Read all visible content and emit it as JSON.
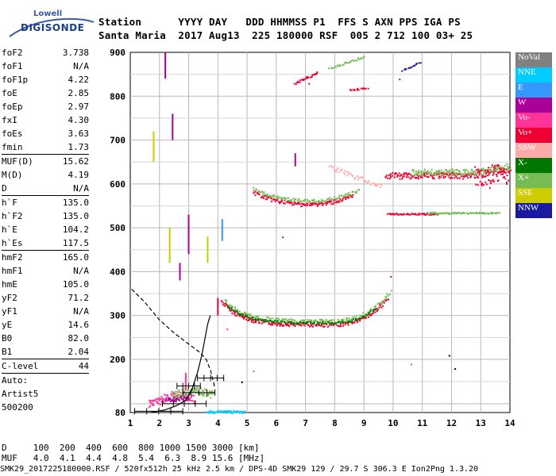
{
  "logo": {
    "line1": "Lowell",
    "line2": "DIGISONDE"
  },
  "header": {
    "row1": "Station      YYYY DAY   DDD HHMMSS P1  FFS S AXN PPS IGA PS",
    "row2": "Santa Maria  2017 Aug13  225 180000 RSF  005 2 712 100 03+ 25"
  },
  "params": [
    {
      "name": "foF2",
      "value": "3.738"
    },
    {
      "name": "foF1",
      "value": "N/A"
    },
    {
      "name": "foF1p",
      "value": "4.22"
    },
    {
      "name": "foE",
      "value": "2.85"
    },
    {
      "name": "foEp",
      "value": "2.97"
    },
    {
      "name": "fxI",
      "value": "4.30"
    },
    {
      "name": "foEs",
      "value": "3.63"
    },
    {
      "name": "fmin",
      "value": "1.73"
    },
    {
      "sep": true
    },
    {
      "name": "MUF(D)",
      "value": "15.62"
    },
    {
      "name": "M(D)",
      "value": "4.19"
    },
    {
      "name": "D",
      "value": "N/A"
    },
    {
      "sep": true
    },
    {
      "name": "h`F",
      "value": "135.0"
    },
    {
      "name": "h`F2",
      "value": "135.0"
    },
    {
      "name": "h`E",
      "value": "104.2"
    },
    {
      "name": "h`Es",
      "value": "117.5"
    },
    {
      "sep": true
    },
    {
      "name": "hmF2",
      "value": "165.0"
    },
    {
      "name": "hmF1",
      "value": "N/A"
    },
    {
      "name": "hmE",
      "value": "105.0"
    },
    {
      "name": "yF2",
      "value": "71.2"
    },
    {
      "name": "yF1",
      "value": "N/A"
    },
    {
      "name": "yE",
      "value": "14.6"
    },
    {
      "name": "B0",
      "value": "82.0"
    },
    {
      "name": "B1",
      "value": "2.04"
    },
    {
      "sep": true
    },
    {
      "name": "C-level",
      "value": "44"
    },
    {
      "sep": true
    },
    {
      "name": "Auto:",
      "value": ""
    },
    {
      "name": "Artist5",
      "value": ""
    },
    {
      "name": "500200",
      "value": ""
    }
  ],
  "legend": [
    {
      "label": "NoVal",
      "color": "#808080"
    },
    {
      "label": "NNE",
      "color": "#00ccff"
    },
    {
      "label": "E",
      "color": "#3399ff"
    },
    {
      "label": "W",
      "color": "#aa0099"
    },
    {
      "label": "Vo-",
      "color": "#ff3399"
    },
    {
      "label": "Vo+",
      "color": "#ee0033"
    },
    {
      "label": "SSW",
      "color": "#ffaaaa"
    },
    {
      "label": "X-",
      "color": "#007700"
    },
    {
      "label": "X+",
      "color": "#77bb55"
    },
    {
      "label": "SSE",
      "color": "#cccc00"
    },
    {
      "label": "NNW",
      "color": "#1a1aa0"
    }
  ],
  "axes": {
    "y_ticks": [
      "900",
      "800",
      "700",
      "600",
      "500",
      "400",
      "300",
      "200",
      "80"
    ],
    "x_ticks": [
      "1",
      "2",
      "3",
      "4",
      "5",
      "6",
      "7",
      "8",
      "9",
      "10",
      "11",
      "12",
      "13",
      "14"
    ]
  },
  "bottom_table": {
    "row1": "D     100  200  400  600  800 1000 1500 3000 [km]",
    "row2": "MUF   4.0  4.1  4.4  4.8  5.4  6.3  8.9 15.6 [MHz]"
  },
  "footer": "SMK29_2017225180000.RSF / 520fx512h 25 kHz 2.5 km / DPS-4D SMK29 129 / 29.7 S 306.3 E Ion2Png 1.3.20"
}
